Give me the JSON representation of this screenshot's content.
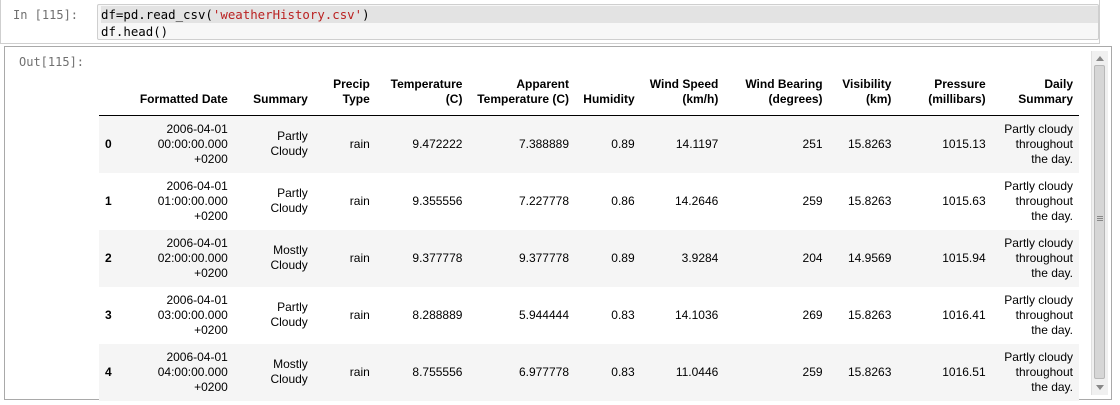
{
  "input_cell": {
    "prompt": "In [115]:",
    "code_line1_a": "df=pd.read_csv(",
    "code_line1_str": "'weatherHistory.csv'",
    "code_line1_b": ")",
    "code_line2": "df.head()"
  },
  "output_cell": {
    "prompt": "Out[115]:"
  },
  "table": {
    "columns": [
      {
        "key": "index",
        "label": ""
      },
      {
        "key": "formatted_date",
        "label": "Formatted Date"
      },
      {
        "key": "summary",
        "label": "Summary"
      },
      {
        "key": "precip",
        "label": "Precip Type"
      },
      {
        "key": "temp",
        "label": "Temperature (C)"
      },
      {
        "key": "apparent",
        "label": "Apparent Temperature (C)"
      },
      {
        "key": "humidity",
        "label": "Humidity"
      },
      {
        "key": "wind_speed",
        "label": "Wind Speed (km/h)"
      },
      {
        "key": "wind_bearing",
        "label": "Wind Bearing (degrees)"
      },
      {
        "key": "visibility",
        "label": "Visibility (km)"
      },
      {
        "key": "pressure",
        "label": "Pressure (millibars)"
      },
      {
        "key": "daily_summary",
        "label": "Daily Summary"
      }
    ],
    "rows": [
      {
        "index": "0",
        "formatted_date": "2006-04-01 00:00:00.000 +0200",
        "summary": "Partly Cloudy",
        "precip": "rain",
        "temp": "9.472222",
        "apparent": "7.388889",
        "humidity": "0.89",
        "wind_speed": "14.1197",
        "wind_bearing": "251",
        "visibility": "15.8263",
        "pressure": "1015.13",
        "daily_summary": "Partly cloudy throughout the day."
      },
      {
        "index": "1",
        "formatted_date": "2006-04-01 01:00:00.000 +0200",
        "summary": "Partly Cloudy",
        "precip": "rain",
        "temp": "9.355556",
        "apparent": "7.227778",
        "humidity": "0.86",
        "wind_speed": "14.2646",
        "wind_bearing": "259",
        "visibility": "15.8263",
        "pressure": "1015.63",
        "daily_summary": "Partly cloudy throughout the day."
      },
      {
        "index": "2",
        "formatted_date": "2006-04-01 02:00:00.000 +0200",
        "summary": "Mostly Cloudy",
        "precip": "rain",
        "temp": "9.377778",
        "apparent": "9.377778",
        "humidity": "0.89",
        "wind_speed": "3.9284",
        "wind_bearing": "204",
        "visibility": "14.9569",
        "pressure": "1015.94",
        "daily_summary": "Partly cloudy throughout the day."
      },
      {
        "index": "3",
        "formatted_date": "2006-04-01 03:00:00.000 +0200",
        "summary": "Partly Cloudy",
        "precip": "rain",
        "temp": "8.288889",
        "apparent": "5.944444",
        "humidity": "0.83",
        "wind_speed": "14.1036",
        "wind_bearing": "269",
        "visibility": "15.8263",
        "pressure": "1016.41",
        "daily_summary": "Partly cloudy throughout the day."
      },
      {
        "index": "4",
        "formatted_date": "2006-04-01 04:00:00.000 +0200",
        "summary": "Mostly Cloudy",
        "precip": "rain",
        "temp": "8.755556",
        "apparent": "6.977778",
        "humidity": "0.83",
        "wind_speed": "11.0446",
        "wind_bearing": "259",
        "visibility": "15.8263",
        "pressure": "1016.51",
        "daily_summary": "Partly cloudy throughout the day."
      }
    ]
  }
}
